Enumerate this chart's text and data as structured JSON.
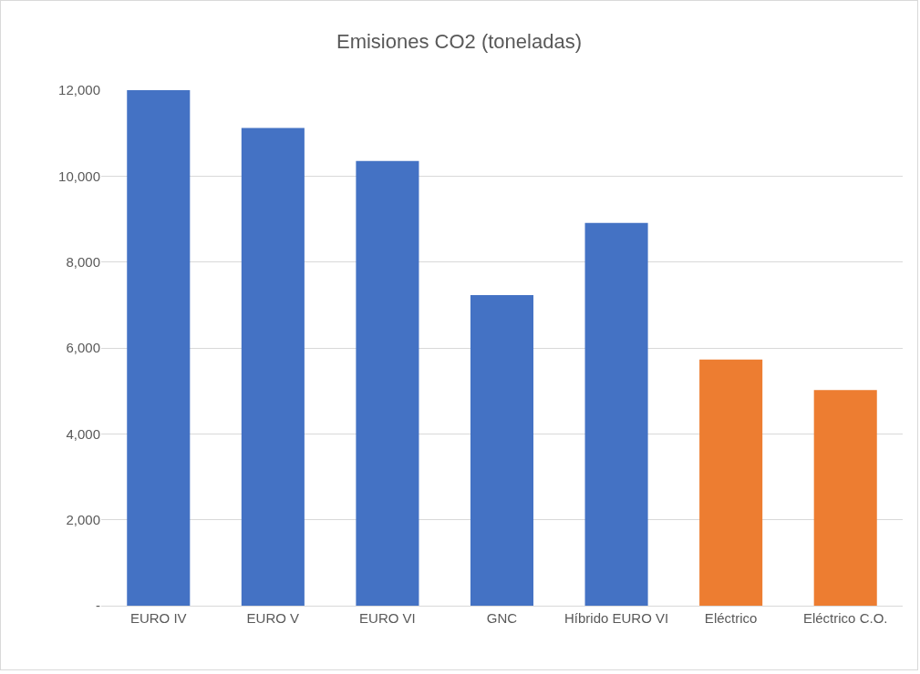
{
  "chart_data": {
    "type": "bar",
    "title": "Emisiones CO2 (toneladas)",
    "categories": [
      "EURO IV",
      "EURO V",
      "EURO VI",
      "GNC",
      "Híbrido EURO VI",
      "Eléctrico",
      "Eléctrico C.O."
    ],
    "values": [
      12000,
      11120,
      10350,
      7230,
      8910,
      5730,
      5020
    ],
    "colors": [
      "#4472c4",
      "#4472c4",
      "#4472c4",
      "#4472c4",
      "#4472c4",
      "#ed7d31",
      "#ed7d31"
    ],
    "ylim": [
      0,
      12000
    ],
    "yticks": [
      {
        "value": 0,
        "label": "-"
      },
      {
        "value": 2000,
        "label": "2,000"
      },
      {
        "value": 4000,
        "label": "4,000"
      },
      {
        "value": 6000,
        "label": "6,000"
      },
      {
        "value": 8000,
        "label": "8,000"
      },
      {
        "value": 10000,
        "label": "10,000"
      },
      {
        "value": 12000,
        "label": "12,000"
      }
    ],
    "grid": "y",
    "legend": false
  }
}
